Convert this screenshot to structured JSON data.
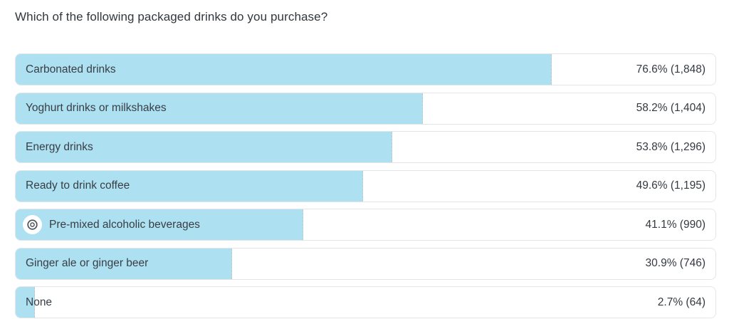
{
  "chart_data": {
    "type": "bar",
    "orientation": "horizontal",
    "title": "Which of the following packaged drinks do you purchase?",
    "categories": [
      "Carbonated drinks",
      "Yoghurt drinks or milkshakes",
      "Energy drinks",
      "Ready to drink coffee",
      "Pre-mixed alcoholic beverages",
      "Ginger ale or ginger beer",
      "None"
    ],
    "values": [
      76.6,
      58.2,
      53.8,
      49.6,
      41.1,
      30.9,
      2.7
    ],
    "counts": [
      1848,
      1404,
      1296,
      1195,
      990,
      746,
      64
    ],
    "value_labels": [
      "76.6% (1,848)",
      "58.2% (1,404)",
      "53.8% (1,296)",
      "49.6% (1,195)",
      "41.1% (990)",
      "30.9% (746)",
      "2.7% (64)"
    ],
    "xlim": [
      0,
      100
    ],
    "highlighted_category": "Pre-mixed alcoholic beverages",
    "highlight_icon": "target-icon"
  },
  "colors": {
    "bar_fill": "#ADE0F0",
    "row_border": "#E3E6E9",
    "bar_edge_dashed": "#C2C7CC",
    "label_text": "#383E45",
    "value_text": "#343A40",
    "title_text": "#31373D"
  }
}
